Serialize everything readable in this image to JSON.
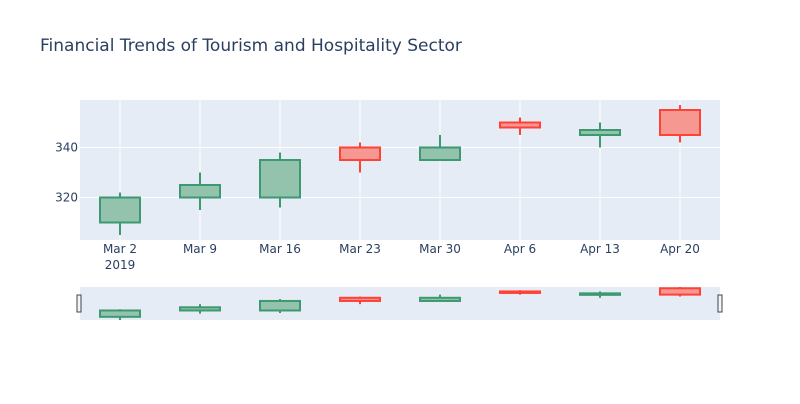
{
  "chart_data": {
    "type": "candlestick",
    "title": "Financial Trends of Tourism and Hospitality Sector",
    "x_labels": [
      "Mar 2",
      "Mar 9",
      "Mar 16",
      "Mar 23",
      "Mar 30",
      "Apr 6",
      "Apr 13",
      "Apr 20"
    ],
    "x_year_label": "2019",
    "y_ticks": [
      320,
      340
    ],
    "ylim": [
      303,
      359
    ],
    "grid": true,
    "candles": [
      {
        "date": "Mar 2",
        "open": 310,
        "high": 322,
        "low": 305,
        "close": 320
      },
      {
        "date": "Mar 9",
        "open": 320,
        "high": 330,
        "low": 315,
        "close": 325
      },
      {
        "date": "Mar 16",
        "open": 320,
        "high": 338,
        "low": 316,
        "close": 335
      },
      {
        "date": "Mar 23",
        "open": 340,
        "high": 342,
        "low": 330,
        "close": 335
      },
      {
        "date": "Mar 30",
        "open": 335,
        "high": 345,
        "low": 335,
        "close": 340
      },
      {
        "date": "Apr 6",
        "open": 350,
        "high": 352,
        "low": 345,
        "close": 348
      },
      {
        "date": "Apr 13",
        "open": 345,
        "high": 350,
        "low": 340,
        "close": 347
      },
      {
        "date": "Apr 20",
        "open": 355,
        "high": 357,
        "low": 342,
        "close": 345
      }
    ],
    "colors": {
      "increasing_line": "#3d9970",
      "increasing_fill": "#93c2ad",
      "decreasing_line": "#ff4136",
      "decreasing_fill": "#f59892",
      "plot_bg": "#e5ecf6",
      "grid": "#ffffff",
      "text": "#2a3f5f"
    },
    "rangeslider": true
  }
}
